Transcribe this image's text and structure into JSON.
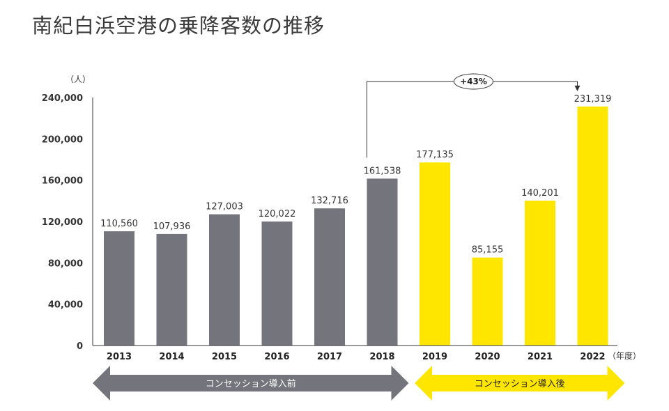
{
  "title": "南紀白浜空港の乗降客数の推移",
  "chart_data": {
    "type": "bar",
    "title": "南紀白浜空港の乗降客数の推移",
    "y_unit_label": "（人）",
    "x_unit_label": "（年度）",
    "ylim": [
      0,
      240000
    ],
    "yticks": [
      0,
      40000,
      80000,
      120000,
      160000,
      200000,
      240000
    ],
    "ytick_labels": [
      "0",
      "40,000",
      "80,000",
      "120,000",
      "160,000",
      "200,000",
      "240,000"
    ],
    "categories": [
      "2013",
      "2014",
      "2015",
      "2016",
      "2017",
      "2018",
      "2019",
      "2020",
      "2021",
      "2022"
    ],
    "values": [
      110560,
      107936,
      127003,
      120022,
      132716,
      161538,
      177135,
      85155,
      140201,
      231319
    ],
    "value_labels": [
      "110,560",
      "107,936",
      "127,003",
      "120,022",
      "132,716",
      "161,538",
      "177,135",
      "85,155",
      "140,201",
      "231,319"
    ],
    "periods": [
      "before",
      "before",
      "before",
      "before",
      "before",
      "before",
      "after",
      "after",
      "after",
      "after"
    ],
    "colors": {
      "before": "#74747c",
      "after": "#ffe600"
    },
    "comparison": {
      "from": "2018",
      "to": "2022",
      "label": "+43%"
    },
    "phase_arrows": [
      {
        "label": "コンセッション導入前",
        "period": "before"
      },
      {
        "label": "コンセッション導入後",
        "period": "after"
      }
    ]
  }
}
